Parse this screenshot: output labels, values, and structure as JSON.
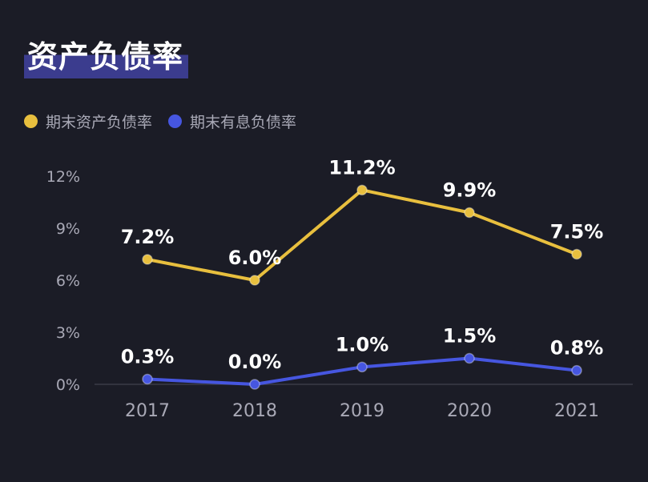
{
  "title": "资产负债率",
  "colors": {
    "background": "#1b1c26",
    "series1": "#e8bf3e",
    "series2": "#4656e0",
    "axis": "#3a3b46",
    "tick_text": "#a9a9b6",
    "title_highlight": "#3b3c8e"
  },
  "chart_data": {
    "type": "line",
    "title": "资产负债率",
    "xlabel": "",
    "ylabel": "",
    "categories": [
      "2017",
      "2018",
      "2019",
      "2020",
      "2021"
    ],
    "ylim": [
      0,
      12
    ],
    "yticks": [
      0,
      3,
      6,
      9,
      12
    ],
    "ytick_labels": [
      "0%",
      "3%",
      "6%",
      "9%",
      "12%"
    ],
    "grid": false,
    "legend_position": "top-left",
    "series": [
      {
        "name": "期末资产负债率",
        "color": "#e8bf3e",
        "values": [
          7.2,
          6.0,
          11.2,
          9.9,
          7.5
        ],
        "labels": [
          "7.2%",
          "6.0%",
          "11.2%",
          "9.9%",
          "7.5%"
        ]
      },
      {
        "name": "期末有息负债率",
        "color": "#4656e0",
        "values": [
          0.3,
          0.0,
          1.0,
          1.5,
          0.8
        ],
        "labels": [
          "0.3%",
          "0.0%",
          "1.0%",
          "1.5%",
          "0.8%"
        ]
      }
    ]
  }
}
